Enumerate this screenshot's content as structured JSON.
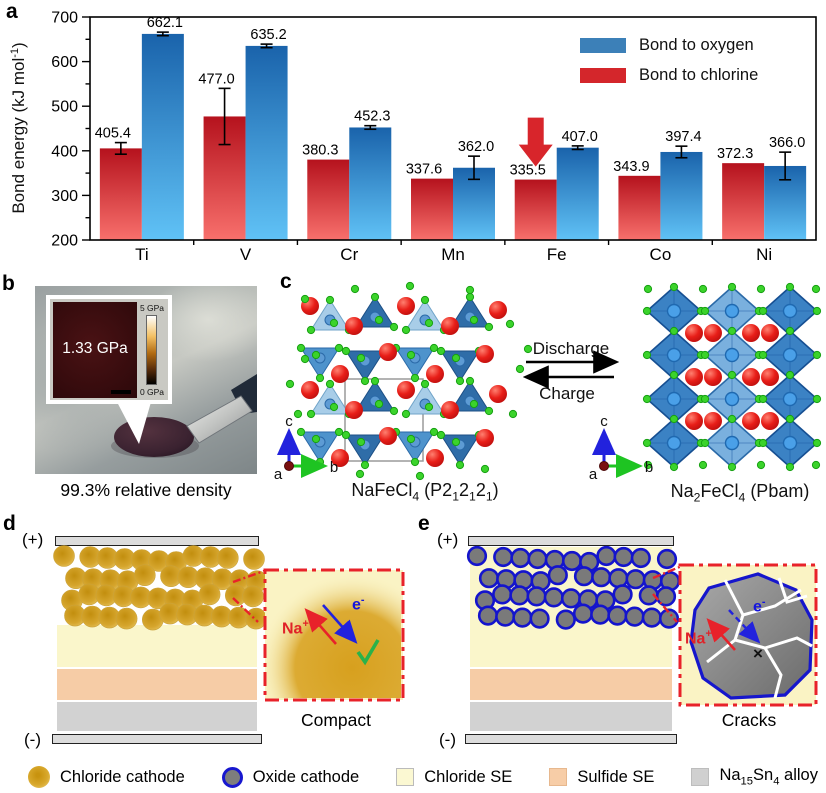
{
  "chart_data": {
    "type": "bar",
    "title": "",
    "categories": [
      "Ti",
      "V",
      "Cr",
      "Mn",
      "Fe",
      "Co",
      "Ni"
    ],
    "series": [
      {
        "name": "Bond to chlorine",
        "color_top": "#b5121d",
        "color_bottom": "#f8706c",
        "swatch": "#d4262b",
        "values": [
          405.4,
          477.0,
          380.3,
          337.6,
          335.5,
          343.9,
          372.3
        ],
        "errors": [
          13,
          63,
          0,
          0,
          0,
          0,
          0
        ]
      },
      {
        "name": "Bond to oxygen",
        "color_top": "#1a63ab",
        "color_bottom": "#60c2f6",
        "swatch": "#3c80b8",
        "values": [
          662.1,
          635.2,
          452.3,
          362.0,
          407.0,
          397.4,
          366.0
        ],
        "errors": [
          4,
          4,
          4,
          26,
          4,
          13,
          31
        ]
      }
    ],
    "legend": [
      {
        "label": "Bond to oxygen",
        "color": "#3c80b8"
      },
      {
        "label": "Bond to chlorine",
        "color": "#d4262b"
      }
    ],
    "ylabel": "Bond energy (kJ mol⁻¹)",
    "ylabel_parts": {
      "main": "Bond energy (kJ mol",
      "sup": "-1",
      "close": ")"
    },
    "ylim": [
      200,
      700
    ],
    "yticks": [
      200,
      300,
      400,
      500,
      600,
      700
    ],
    "grid": false,
    "legend_position": "top-right",
    "annotation": {
      "type": "down-arrow",
      "color": "#d8252b",
      "category": "Fe",
      "series": "Bond to chlorine"
    }
  },
  "panels": {
    "a": {
      "label": "a"
    },
    "b": {
      "label": "b",
      "inset_value": "1.33 GPa",
      "cbar_top": "5 GPa",
      "cbar_bottom": "0 GPa",
      "caption": "99.3% relative density"
    },
    "c": {
      "label": "c",
      "discharge": "Discharge",
      "charge": "Charge",
      "axis_a": "a",
      "axis_b": "b",
      "axis_c": "c",
      "left_caption": {
        "f1": "NaFeCl",
        "s1": "4",
        "f2": " (P2",
        "s2": "1",
        "f3": "2",
        "s3": "1",
        "f4": "2",
        "s4": "1",
        "f5": ")"
      },
      "right_caption": {
        "f1": "Na",
        "s1": "2",
        "f2": "FeCl",
        "s2": "4",
        "f3": " (Pbam)"
      }
    },
    "d": {
      "label": "d",
      "plus": "(+)",
      "minus": "(-)",
      "caption": "Compact",
      "na_base": "Na",
      "na_sup": "+",
      "e_base": "e",
      "e_sup": "-",
      "check": "✓"
    },
    "e": {
      "label": "e",
      "plus": "(+)",
      "minus": "(-)",
      "caption": "Cracks",
      "na_base": "Na",
      "na_sup": "+",
      "e_base": "e",
      "e_sup": "-",
      "cross": "×"
    }
  },
  "legend": {
    "items": [
      {
        "type": "chloride-cathode",
        "label": "Chloride cathode"
      },
      {
        "type": "oxide-cathode",
        "label": "Oxide cathode"
      },
      {
        "type": "chloride-se",
        "label": "Chloride SE"
      },
      {
        "type": "sulfide-se",
        "label": "Sulfide SE"
      },
      {
        "type": "na15sn4-alloy",
        "label_parts": {
          "f1": "Na",
          "s1": "15",
          "f2": "Sn",
          "s2": "4",
          "f3": " alloy"
        }
      }
    ]
  }
}
